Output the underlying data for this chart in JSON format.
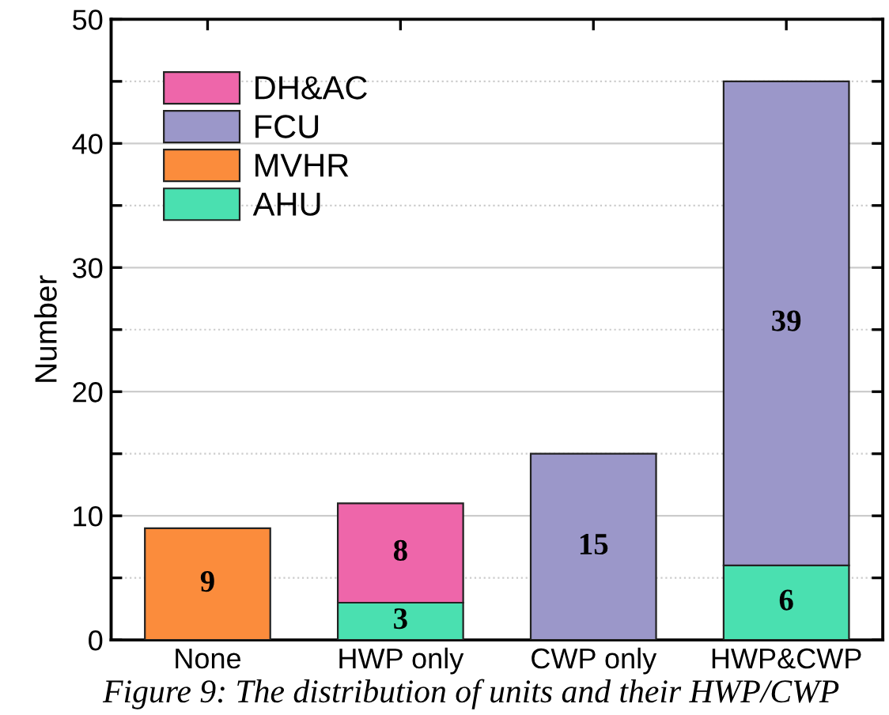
{
  "chart_data": {
    "type": "bar",
    "stacked": true,
    "ylabel": "Number",
    "categories": [
      "None",
      "HWP only",
      "CWP only",
      "HWP&CWP"
    ],
    "series": [
      {
        "name": "AHU",
        "color": "#4ae0b0",
        "values": [
          null,
          3,
          null,
          6
        ]
      },
      {
        "name": "MVHR",
        "color": "#fb8c3c",
        "values": [
          9,
          null,
          null,
          null
        ]
      },
      {
        "name": "FCU",
        "color": "#9b97c9",
        "values": [
          null,
          null,
          15,
          39
        ]
      },
      {
        "name": "DH&AC",
        "color": "#ee66aa",
        "values": [
          null,
          8,
          null,
          null
        ]
      }
    ],
    "ylim": [
      0,
      50
    ],
    "yticks": [
      0,
      {
        "value": 5,
        "label": null
      },
      10,
      {
        "value": 15,
        "label": null
      },
      20,
      {
        "value": 25,
        "label": null
      },
      30,
      {
        "value": 35,
        "label": null
      },
      40,
      {
        "value": 45,
        "label": null
      },
      50
    ],
    "grid": "y",
    "legend": "top left",
    "data_labels": true,
    "annotations": [
      "Figure 9: The distribution of units and their HWP/CWP"
    ]
  }
}
